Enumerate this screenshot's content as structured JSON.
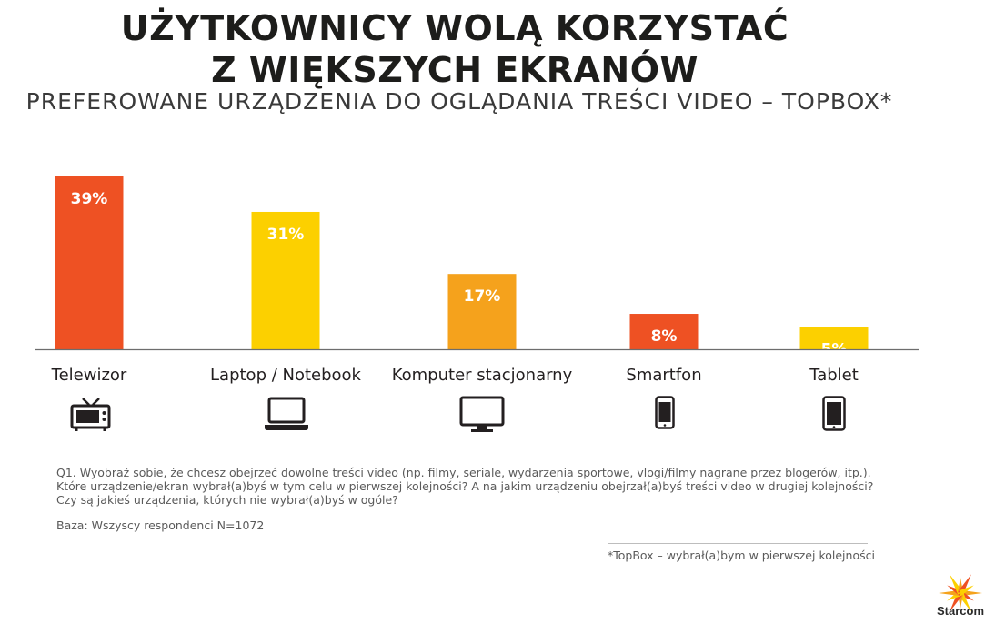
{
  "header": {
    "title_line1": "UŻYTKOWNICY WOLĄ KORZYSTAĆ",
    "title_line2": "Z WIĘKSZYCH EKRANÓW",
    "subtitle": "PREFEROWANE URZĄDZENIA DO OGLĄDANIA TREŚCI VIDEO – TOPBOX*"
  },
  "chart_data": {
    "type": "bar",
    "title": "UŻYTKOWNICY WOLĄ KORZYSTAĆ Z WIĘKSZYCH EKRANÓW",
    "subtitle": "PREFEROWANE URZĄDZENIA DO OGLĄDANIA TREŚCI VIDEO – TOPBOX*",
    "categories": [
      "Telewizor",
      "Laptop / Notebook",
      "Komputer stacjonarny",
      "Smartfon",
      "Tablet"
    ],
    "values": [
      39,
      31,
      17,
      8,
      5
    ],
    "value_labels": [
      "39%",
      "31%",
      "17%",
      "8%",
      "5%"
    ],
    "bar_colors": [
      "#ee5123",
      "#fcd000",
      "#f5a21c",
      "#ee5123",
      "#fcd000"
    ],
    "icons": [
      "tv-icon",
      "laptop-icon",
      "desktop-monitor-icon",
      "smartphone-icon",
      "tablet-icon"
    ],
    "xlabel": "",
    "ylabel": "",
    "ylim": [
      0,
      39
    ],
    "grid": false,
    "legend": "none"
  },
  "notes": {
    "question_line1": "Q1. Wyobraź sobie, że chcesz obejrzeć dowolne treści video (np. filmy, seriale, wydarzenia sportowe, vlogi/filmy nagrane przez blogerów, itp.).",
    "question_line2": "Które urządzenie/ekran wybrał(a)byś w tym celu w pierwszej kolejności? A na jakim urządzeniu obejrzał(a)byś treści video w drugiej kolejności?",
    "question_line3": "Czy są jakieś urządzenia, których nie wybrał(a)byś w ogóle?",
    "base": "Baza: Wszyscy respondenci N=1072",
    "topbox": "*TopBox – wybrał(a)bym w pierwszej kolejności"
  },
  "brand": {
    "name": "Starcom",
    "colors": [
      "#f5a21c",
      "#ee5123",
      "#fcd000"
    ]
  }
}
